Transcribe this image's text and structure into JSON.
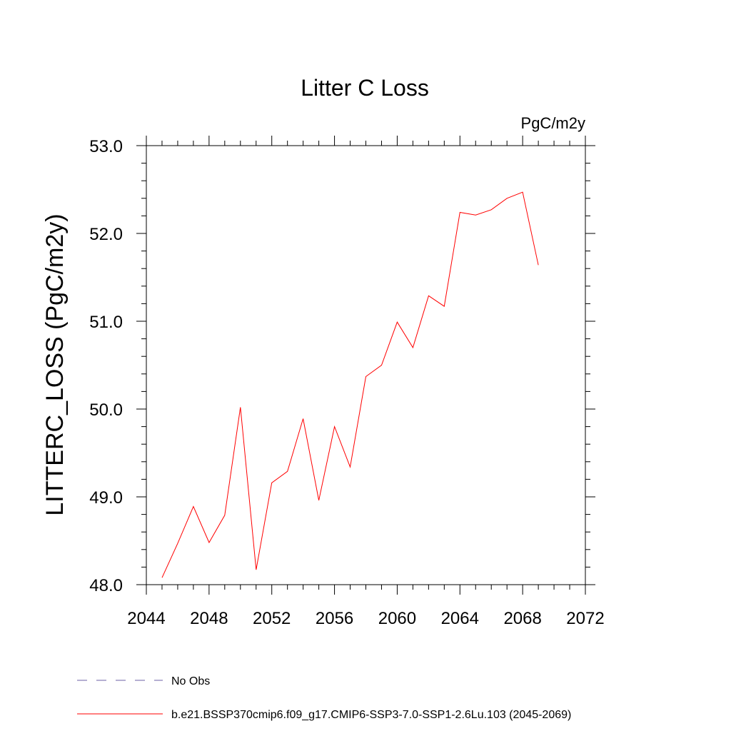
{
  "chart_data": {
    "type": "line",
    "title": "Litter C Loss",
    "units_label": "PgC/m2y",
    "xlabel": "",
    "ylabel": "LITTERC_LOSS  (PgC/m2y)",
    "xlim": [
      2044,
      2072
    ],
    "ylim": [
      48.0,
      53.0
    ],
    "x_ticks": [
      2044,
      2048,
      2052,
      2056,
      2060,
      2064,
      2068,
      2072
    ],
    "x_tick_labels": [
      "2044",
      "2048",
      "2052",
      "2056",
      "2060",
      "2064",
      "2068",
      "2072"
    ],
    "y_ticks": [
      48.0,
      49.0,
      50.0,
      51.0,
      52.0,
      53.0
    ],
    "y_tick_labels": [
      "48.0",
      "49.0",
      "50.0",
      "51.0",
      "52.0",
      "53.0"
    ],
    "grid": false,
    "series": [
      {
        "name": "b.e21.BSSP370cmip6.f09_g17.CMIP6-SSP3-7.0-SSP1-2.6Lu.103 (2045-2069)",
        "color": "#ff0000",
        "x": [
          2045,
          2046,
          2047,
          2048,
          2049,
          2050,
          2051,
          2052,
          2053,
          2054,
          2055,
          2056,
          2057,
          2058,
          2059,
          2060,
          2061,
          2062,
          2063,
          2064,
          2065,
          2066,
          2067,
          2068,
          2069
        ],
        "values": [
          48.08,
          48.47,
          48.89,
          48.48,
          48.79,
          50.02,
          48.17,
          49.16,
          49.29,
          49.89,
          48.96,
          49.8,
          49.34,
          50.37,
          50.5,
          50.99,
          50.7,
          51.29,
          51.17,
          52.24,
          52.21,
          52.27,
          52.4,
          52.47,
          51.64
        ]
      }
    ],
    "legend": [
      {
        "label": "No Obs",
        "style": "dashed",
        "color": "#6b5fa6"
      },
      {
        "label": "b.e21.BSSP370cmip6.f09_g17.CMIP6-SSP3-7.0-SSP1-2.6Lu.103 (2045-2069)",
        "style": "solid",
        "color": "#ff0000"
      }
    ],
    "legend_position": "bottom-left"
  }
}
